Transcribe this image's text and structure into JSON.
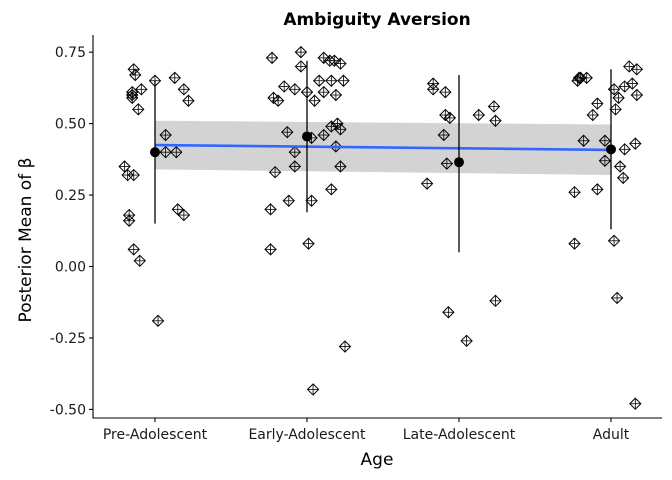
{
  "chart_data": {
    "type": "scatter",
    "title": "Ambiguity Aversion",
    "xlabel": "Age",
    "ylabel": "Posterior Mean of β",
    "categories": [
      "Pre-Adolescent",
      "Early-Adolescent",
      "Late-Adolescent",
      "Adult"
    ],
    "ylim": [
      -0.53,
      0.81
    ],
    "yticks": [
      -0.5,
      -0.25,
      0.0,
      0.25,
      0.5,
      0.75
    ],
    "ytick_labels": [
      "-0.50",
      "-0.25",
      "0.00",
      "0.25",
      "0.50",
      "0.75"
    ],
    "grid": false,
    "points": {
      "Pre-Adolescent": [
        {
          "dx": -0.2,
          "y": 0.35
        },
        {
          "dx": -0.18,
          "y": 0.32
        },
        {
          "dx": -0.15,
          "y": 0.6
        },
        {
          "dx": -0.14,
          "y": 0.69
        },
        {
          "dx": -0.13,
          "y": 0.67
        },
        {
          "dx": -0.15,
          "y": 0.61
        },
        {
          "dx": -0.15,
          "y": 0.59
        },
        {
          "dx": -0.11,
          "y": 0.55
        },
        {
          "dx": -0.09,
          "y": 0.62
        },
        {
          "dx": -0.14,
          "y": 0.32
        },
        {
          "dx": -0.17,
          "y": 0.18
        },
        {
          "dx": -0.17,
          "y": 0.16
        },
        {
          "dx": -0.14,
          "y": 0.06
        },
        {
          "dx": -0.1,
          "y": 0.02
        },
        {
          "dx": 0.0,
          "y": 0.65
        },
        {
          "dx": 0.07,
          "y": 0.46
        },
        {
          "dx": 0.07,
          "y": 0.4
        },
        {
          "dx": 0.02,
          "y": -0.19
        },
        {
          "dx": 0.13,
          "y": 0.66
        },
        {
          "dx": 0.19,
          "y": 0.62
        },
        {
          "dx": 0.22,
          "y": 0.58
        },
        {
          "dx": 0.14,
          "y": 0.4
        },
        {
          "dx": 0.15,
          "y": 0.2
        },
        {
          "dx": 0.19,
          "y": 0.18
        }
      ],
      "Early-Adolescent": [
        {
          "dx": -0.23,
          "y": 0.73
        },
        {
          "dx": -0.22,
          "y": 0.59
        },
        {
          "dx": -0.19,
          "y": 0.58
        },
        {
          "dx": -0.15,
          "y": 0.63
        },
        {
          "dx": -0.08,
          "y": 0.62
        },
        {
          "dx": -0.13,
          "y": 0.47
        },
        {
          "dx": -0.08,
          "y": 0.4
        },
        {
          "dx": -0.08,
          "y": 0.35
        },
        {
          "dx": -0.21,
          "y": 0.33
        },
        {
          "dx": -0.12,
          "y": 0.23
        },
        {
          "dx": -0.24,
          "y": 0.2
        },
        {
          "dx": -0.24,
          "y": 0.06
        },
        {
          "dx": -0.04,
          "y": 0.75
        },
        {
          "dx": -0.04,
          "y": 0.7
        },
        {
          "dx": 0.0,
          "y": 0.61
        },
        {
          "dx": 0.05,
          "y": 0.58
        },
        {
          "dx": 0.03,
          "y": 0.45
        },
        {
          "dx": 0.03,
          "y": 0.23
        },
        {
          "dx": 0.01,
          "y": 0.08
        },
        {
          "dx": 0.04,
          "y": -0.43
        },
        {
          "dx": 0.08,
          "y": 0.65
        },
        {
          "dx": 0.11,
          "y": 0.61
        },
        {
          "dx": 0.11,
          "y": 0.73
        },
        {
          "dx": 0.15,
          "y": 0.72
        },
        {
          "dx": 0.16,
          "y": 0.65
        },
        {
          "dx": 0.18,
          "y": 0.72
        },
        {
          "dx": 0.22,
          "y": 0.71
        },
        {
          "dx": 0.24,
          "y": 0.65
        },
        {
          "dx": 0.19,
          "y": 0.6
        },
        {
          "dx": 0.11,
          "y": 0.46
        },
        {
          "dx": 0.16,
          "y": 0.49
        },
        {
          "dx": 0.2,
          "y": 0.5
        },
        {
          "dx": 0.22,
          "y": 0.48
        },
        {
          "dx": 0.19,
          "y": 0.42
        },
        {
          "dx": 0.22,
          "y": 0.35
        },
        {
          "dx": 0.16,
          "y": 0.27
        },
        {
          "dx": 0.25,
          "y": -0.28
        }
      ],
      "Late-Adolescent": [
        {
          "dx": -0.21,
          "y": 0.29
        },
        {
          "dx": -0.17,
          "y": 0.64
        },
        {
          "dx": -0.17,
          "y": 0.62
        },
        {
          "dx": -0.09,
          "y": 0.61
        },
        {
          "dx": -0.09,
          "y": 0.53
        },
        {
          "dx": -0.06,
          "y": 0.52
        },
        {
          "dx": -0.1,
          "y": 0.46
        },
        {
          "dx": -0.08,
          "y": 0.36
        },
        {
          "dx": -0.07,
          "y": -0.16
        },
        {
          "dx": 0.05,
          "y": -0.26
        },
        {
          "dx": 0.13,
          "y": 0.53
        },
        {
          "dx": 0.23,
          "y": 0.56
        },
        {
          "dx": 0.24,
          "y": 0.51
        },
        {
          "dx": 0.24,
          "y": -0.12
        }
      ],
      "Adult": [
        {
          "dx": -0.24,
          "y": 0.26
        },
        {
          "dx": -0.24,
          "y": 0.08
        },
        {
          "dx": -0.21,
          "y": 0.66
        },
        {
          "dx": -0.22,
          "y": 0.65
        },
        {
          "dx": -0.2,
          "y": 0.66
        },
        {
          "dx": -0.16,
          "y": 0.66
        },
        {
          "dx": -0.18,
          "y": 0.44
        },
        {
          "dx": -0.12,
          "y": 0.53
        },
        {
          "dx": -0.09,
          "y": 0.57
        },
        {
          "dx": -0.04,
          "y": 0.44
        },
        {
          "dx": -0.04,
          "y": 0.37
        },
        {
          "dx": -0.09,
          "y": 0.27
        },
        {
          "dx": 0.02,
          "y": 0.62
        },
        {
          "dx": 0.03,
          "y": 0.55
        },
        {
          "dx": 0.05,
          "y": 0.59
        },
        {
          "dx": 0.02,
          "y": 0.09
        },
        {
          "dx": 0.04,
          "y": -0.11
        },
        {
          "dx": 0.06,
          "y": 0.35
        },
        {
          "dx": 0.08,
          "y": 0.31
        },
        {
          "dx": 0.09,
          "y": 0.41
        },
        {
          "dx": 0.09,
          "y": 0.63
        },
        {
          "dx": 0.12,
          "y": 0.7
        },
        {
          "dx": 0.14,
          "y": 0.64
        },
        {
          "dx": 0.17,
          "y": 0.69
        },
        {
          "dx": 0.17,
          "y": 0.6
        },
        {
          "dx": 0.16,
          "y": 0.43
        },
        {
          "dx": 0.16,
          "y": -0.48
        }
      ]
    },
    "summary": [
      {
        "category": "Pre-Adolescent",
        "mean": 0.4,
        "lower": 0.15,
        "upper": 0.65
      },
      {
        "category": "Early-Adolescent",
        "mean": 0.455,
        "lower": 0.19,
        "upper": 0.72
      },
      {
        "category": "Late-Adolescent",
        "mean": 0.365,
        "lower": 0.05,
        "upper": 0.67
      },
      {
        "category": "Adult",
        "mean": 0.41,
        "lower": 0.13,
        "upper": 0.69
      }
    ],
    "trend": {
      "x": [
        1,
        4
      ],
      "y": [
        0.425,
        0.408
      ],
      "band_lower": [
        0.34,
        0.32
      ],
      "band_upper": [
        0.51,
        0.497
      ]
    },
    "colors": {
      "trend_line": "#3366FF",
      "confidence_band": "#d3d3d3",
      "points": "#000000",
      "summary": "#000000",
      "axis": "#000000"
    }
  }
}
